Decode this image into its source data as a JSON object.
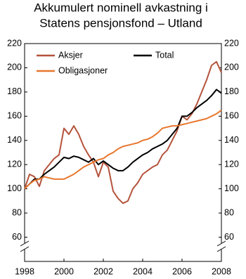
{
  "chart_data": {
    "type": "line",
    "title": [
      "Akkumulert nominell avkastning i",
      "Statens pensjonsfond   –  Utland"
    ],
    "x": [
      1998,
      1998.25,
      1998.5,
      1998.75,
      1999,
      1999.25,
      1999.5,
      1999.75,
      2000,
      2000.25,
      2000.5,
      2000.75,
      2001,
      2001.25,
      2001.5,
      2001.75,
      2002,
      2002.25,
      2002.5,
      2002.75,
      2003,
      2003.25,
      2003.5,
      2003.75,
      2004,
      2004.25,
      2004.5,
      2004.75,
      2005,
      2005.25,
      2005.5,
      2005.75,
      2006,
      2006.25,
      2006.5,
      2006.75,
      2007,
      2007.25,
      2007.5,
      2007.75,
      2008
    ],
    "series": [
      {
        "name": "Aksjer",
        "color": "#b5533c",
        "values": [
          100,
          112,
          110,
          102,
          115,
          120,
          125,
          128,
          150,
          145,
          152,
          145,
          135,
          128,
          122,
          110,
          122,
          118,
          98,
          92,
          88,
          90,
          100,
          105,
          112,
          115,
          118,
          120,
          128,
          132,
          140,
          148,
          160,
          157,
          162,
          170,
          180,
          190,
          202,
          205,
          196
        ]
      },
      {
        "name": "Total",
        "color": "#000000",
        "values": [
          100,
          104,
          108,
          108,
          112,
          115,
          118,
          122,
          126,
          125,
          127,
          126,
          124,
          122,
          125,
          120,
          123,
          120,
          117,
          115,
          115,
          118,
          122,
          125,
          128,
          130,
          133,
          135,
          137,
          140,
          145,
          150,
          160,
          160,
          163,
          167,
          170,
          173,
          177,
          182,
          179
        ]
      },
      {
        "name": "Obligasjoner",
        "color": "#e8772e",
        "values": [
          100,
          104,
          107,
          108,
          110,
          109,
          108,
          108,
          108,
          110,
          112,
          115,
          118,
          120,
          122,
          124,
          125,
          128,
          130,
          133,
          135,
          136,
          137,
          138,
          140,
          141,
          143,
          146,
          150,
          151,
          152,
          152,
          153,
          154,
          155,
          156,
          157,
          158,
          160,
          162,
          165
        ]
      }
    ],
    "xlim": [
      1998,
      2008
    ],
    "xticks": [
      1998,
      2000,
      2002,
      2004,
      2006,
      2008
    ],
    "ylim": [
      40,
      220
    ],
    "yticks": [
      60,
      80,
      100,
      120,
      140,
      160,
      180,
      200,
      220
    ],
    "y2lim": [
      40,
      220
    ],
    "y2ticks": [
      60,
      80,
      100,
      120,
      140,
      160,
      180,
      200,
      220
    ]
  }
}
